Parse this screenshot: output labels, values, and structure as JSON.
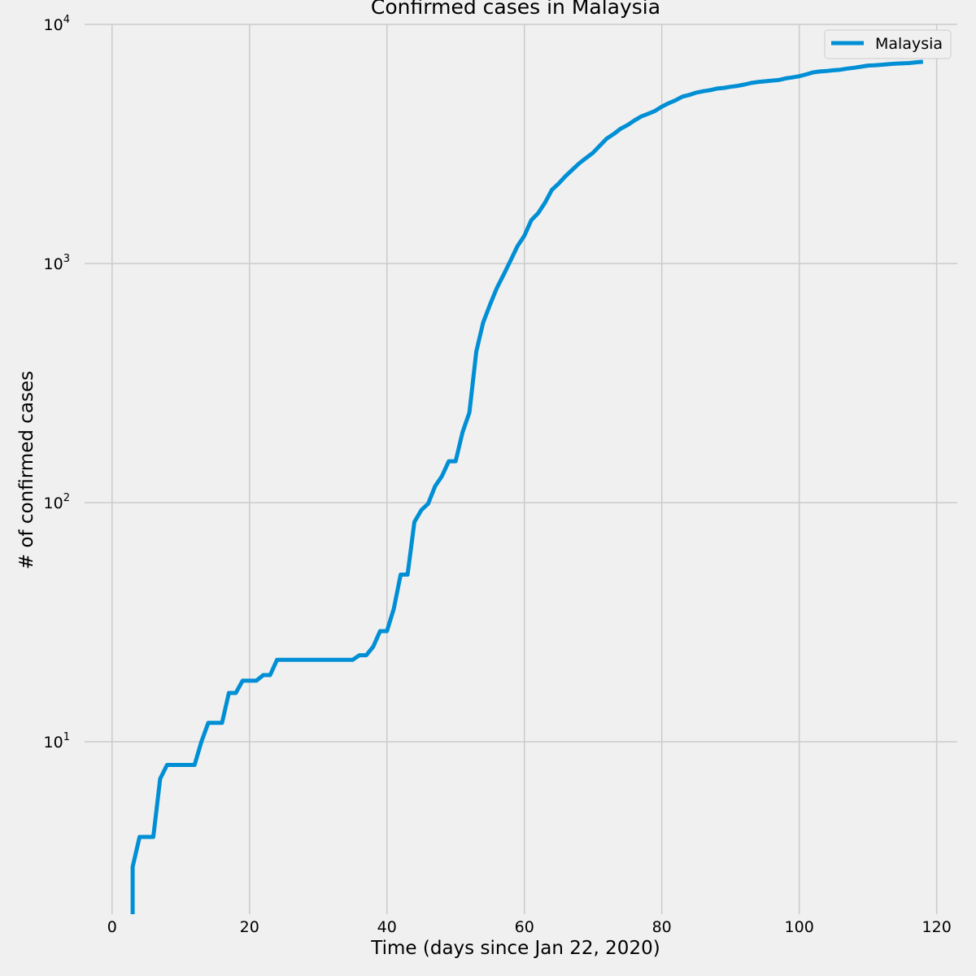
{
  "chart_data": {
    "type": "line",
    "title": "Confirmed cases in Malaysia",
    "xlabel": "Time (days since Jan 22, 2020)",
    "ylabel": "# of confirmed cases",
    "xlim": [
      -4,
      123
    ],
    "ylim": [
      1.9,
      10000
    ],
    "yscale": "log",
    "grid": true,
    "legend_position": "top-right",
    "x_ticks": [
      "0",
      "20",
      "40",
      "60",
      "80",
      "100",
      "120"
    ],
    "y_tick_bases": [
      "10",
      "10",
      "10",
      "10"
    ],
    "y_tick_exponents": [
      "1",
      "2",
      "3",
      "4"
    ],
    "colors": {
      "background": "#f0f0f0",
      "grid": "#cbcbcb",
      "series": "#008fd5"
    },
    "series": [
      {
        "name": "Malaysia",
        "x": [
          3,
          3,
          4,
          5,
          6,
          7,
          8,
          9,
          10,
          11,
          12,
          13,
          14,
          15,
          16,
          17,
          18,
          19,
          20,
          21,
          22,
          23,
          24,
          25,
          26,
          27,
          28,
          29,
          30,
          31,
          32,
          33,
          34,
          35,
          36,
          37,
          38,
          39,
          40,
          41,
          42,
          43,
          44,
          45,
          46,
          47,
          48,
          49,
          50,
          51,
          52,
          53,
          54,
          55,
          56,
          57,
          58,
          59,
          60,
          61,
          62,
          63,
          64,
          65,
          66,
          67,
          68,
          69,
          70,
          71,
          72,
          73,
          74,
          75,
          76,
          77,
          78,
          79,
          80,
          81,
          82,
          83,
          84,
          85,
          86,
          87,
          88,
          89,
          90,
          91,
          92,
          93,
          94,
          95,
          96,
          97,
          98,
          99,
          100,
          101,
          102,
          103,
          104,
          105,
          106,
          107,
          108,
          109,
          110,
          111,
          112,
          113,
          114,
          115,
          116,
          117,
          118
        ],
        "y": [
          1.9,
          3,
          4,
          4,
          4,
          7,
          8,
          8,
          8,
          8,
          8,
          10,
          12,
          12,
          12,
          16,
          16,
          18,
          18,
          18,
          19,
          19,
          22,
          22,
          22,
          22,
          22,
          22,
          22,
          22,
          22,
          22,
          22,
          22,
          23,
          23,
          25,
          29,
          29,
          36,
          50,
          50,
          83,
          93,
          99,
          117,
          129,
          149,
          149,
          197,
          238,
          428,
          566,
          673,
          790,
          900,
          1030,
          1183,
          1306,
          1518,
          1624,
          1796,
          2031,
          2161,
          2320,
          2470,
          2626,
          2766,
          2908,
          3116,
          3333,
          3483,
          3662,
          3793,
          3963,
          4119,
          4228,
          4346,
          4530,
          4683,
          4817,
          4987,
          5072,
          5182,
          5251,
          5305,
          5389,
          5425,
          5482,
          5532,
          5603,
          5691,
          5742,
          5780,
          5820,
          5851,
          5945,
          6002,
          6071,
          6176,
          6298,
          6353,
          6383,
          6428,
          6467,
          6535,
          6589,
          6656,
          6726,
          6742,
          6779,
          6819,
          6855,
          6872,
          6894,
          6941,
          6978
        ]
      }
    ]
  }
}
